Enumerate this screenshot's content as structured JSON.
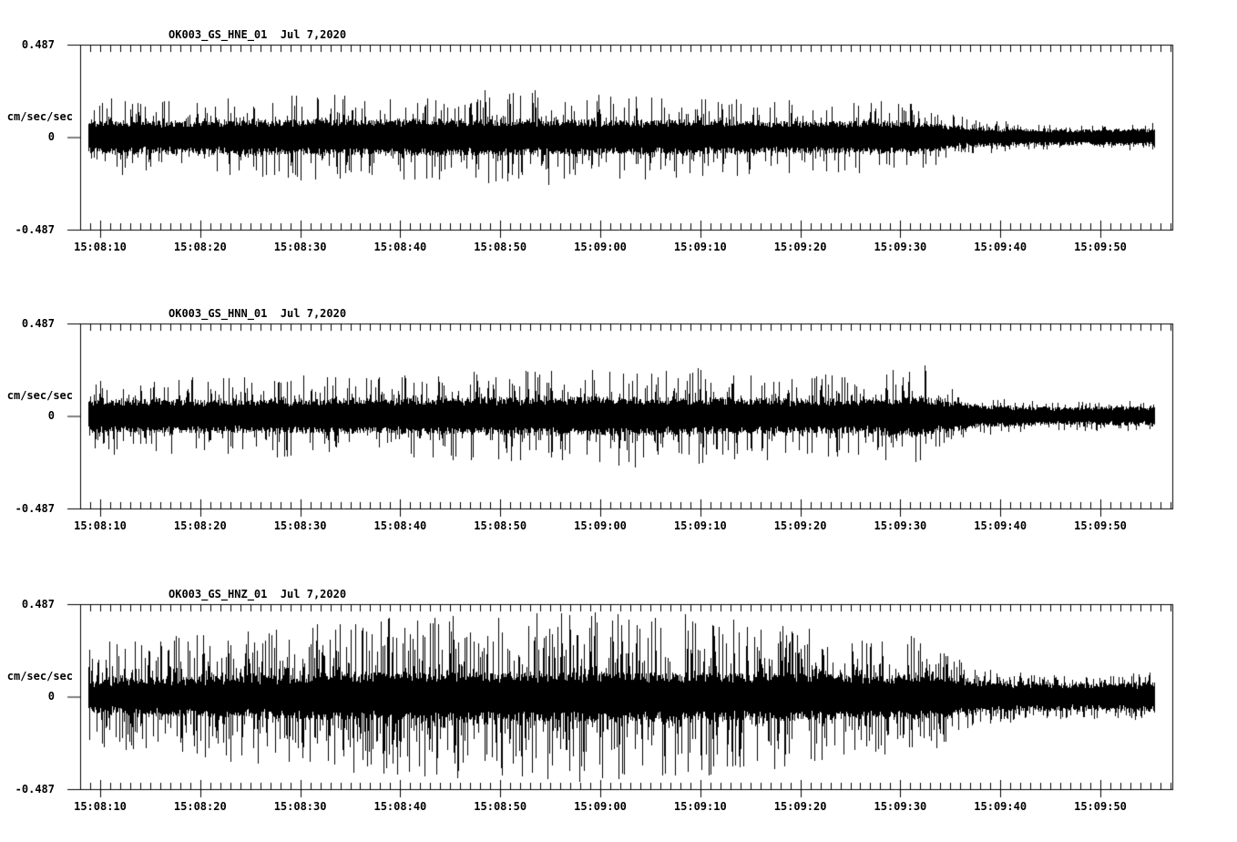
{
  "figure": {
    "background_color": "#ffffff",
    "ink_color": "#000000"
  },
  "chart_data": {
    "type": "line",
    "subtype": "seismogram-strong-motion",
    "station": "OK003",
    "network": "GS",
    "location": "01",
    "date": "Jul 7,2020",
    "ylabel": "cm/sec/sec",
    "ylim": [
      -0.487,
      0.487
    ],
    "ytick_labels": [
      "0.487",
      "0",
      "-0.487"
    ],
    "grid": "off",
    "legend": "none",
    "time_axis": {
      "major_tick_labels": [
        "15:08:10",
        "15:08:20",
        "15:08:30",
        "15:08:40",
        "15:08:50",
        "15:09:00",
        "15:09:10",
        "15:09:20",
        "15:09:30",
        "15:09:40",
        "15:09:50"
      ],
      "major_tick_seconds": [
        10,
        20,
        30,
        40,
        50,
        60,
        70,
        80,
        90,
        100,
        110
      ],
      "minor_tick_interval_s": 1,
      "axis_start_s": 8,
      "axis_end_s": 117.2,
      "trace_start_s": 8.8,
      "trace_end_s": 115.4
    },
    "panels": [
      {
        "id": "HNE",
        "channel": "HNE",
        "title": "OK003_GS_HNE_01  Jul 7,2020",
        "units_label": "cm/sec/sec",
        "y_top_label": "0.487",
        "y_zero_label": "0",
        "y_bottom_label": "-0.487",
        "seed": 11,
        "spike_probability": 0.4,
        "spike_shape": 2.2,
        "envelope": [
          {
            "s": 9,
            "core": 0.072,
            "peak": 0.21
          },
          {
            "s": 20,
            "core": 0.072,
            "peak": 0.2
          },
          {
            "s": 35,
            "core": 0.077,
            "peak": 0.24
          },
          {
            "s": 55,
            "core": 0.077,
            "peak": 0.26
          },
          {
            "s": 70,
            "core": 0.072,
            "peak": 0.21
          },
          {
            "s": 85,
            "core": 0.067,
            "peak": 0.19
          },
          {
            "s": 91,
            "core": 0.072,
            "peak": 0.2
          },
          {
            "s": 97,
            "core": 0.043,
            "peak": 0.1
          },
          {
            "s": 105,
            "core": 0.034,
            "peak": 0.067
          },
          {
            "s": 112,
            "core": 0.034,
            "peak": 0.062
          },
          {
            "s": 115.4,
            "core": 0.038,
            "peak": 0.077
          }
        ]
      },
      {
        "id": "HNN",
        "channel": "HNN",
        "title": "OK003_GS_HNN_01  Jul 7,2020",
        "units_label": "cm/sec/sec",
        "y_top_label": "0.487",
        "y_zero_label": "0",
        "y_bottom_label": "-0.487",
        "seed": 47,
        "spike_probability": 0.42,
        "spike_shape": 2.2,
        "envelope": [
          {
            "s": 9,
            "core": 0.072,
            "peak": 0.2
          },
          {
            "s": 25,
            "core": 0.072,
            "peak": 0.215
          },
          {
            "s": 45,
            "core": 0.077,
            "peak": 0.23
          },
          {
            "s": 62,
            "core": 0.082,
            "peak": 0.27
          },
          {
            "s": 75,
            "core": 0.077,
            "peak": 0.24
          },
          {
            "s": 87,
            "core": 0.072,
            "peak": 0.21
          },
          {
            "s": 92,
            "core": 0.086,
            "peak": 0.29
          },
          {
            "s": 98,
            "core": 0.048,
            "peak": 0.105
          },
          {
            "s": 106,
            "core": 0.038,
            "peak": 0.077
          },
          {
            "s": 115.4,
            "core": 0.043,
            "peak": 0.082
          }
        ]
      },
      {
        "id": "HNZ",
        "channel": "HNZ",
        "title": "OK003_GS_HNZ_01  Jul 7,2020",
        "units_label": "cm/sec/sec",
        "y_top_label": "0.487",
        "y_zero_label": "0",
        "y_bottom_label": "-0.487",
        "seed": 83,
        "spike_probability": 0.6,
        "spike_shape": 1.7,
        "envelope": [
          {
            "s": 9,
            "core": 0.07,
            "peak": 0.28
          },
          {
            "s": 15,
            "core": 0.08,
            "peak": 0.32
          },
          {
            "s": 25,
            "core": 0.09,
            "peak": 0.35
          },
          {
            "s": 35,
            "core": 0.1,
            "peak": 0.4
          },
          {
            "s": 48,
            "core": 0.105,
            "peak": 0.44
          },
          {
            "s": 58,
            "core": 0.105,
            "peak": 0.455
          },
          {
            "s": 68,
            "core": 0.1,
            "peak": 0.44
          },
          {
            "s": 78,
            "core": 0.1,
            "peak": 0.39
          },
          {
            "s": 86,
            "core": 0.095,
            "peak": 0.3
          },
          {
            "s": 92,
            "core": 0.095,
            "peak": 0.33
          },
          {
            "s": 98,
            "core": 0.068,
            "peak": 0.15
          },
          {
            "s": 106,
            "core": 0.058,
            "peak": 0.115
          },
          {
            "s": 112,
            "core": 0.058,
            "peak": 0.12
          },
          {
            "s": 115.4,
            "core": 0.065,
            "peak": 0.135
          }
        ]
      }
    ]
  }
}
